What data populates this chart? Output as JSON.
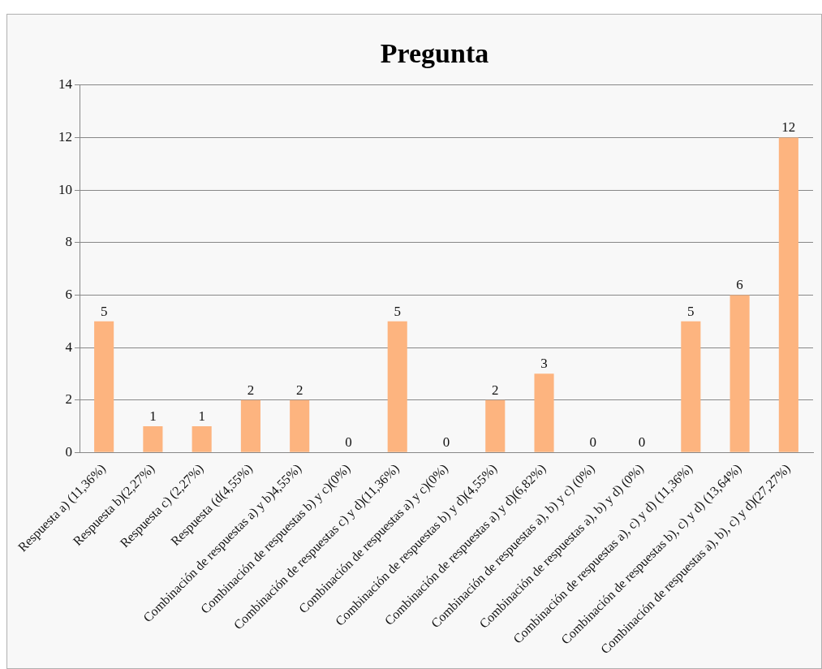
{
  "chart_data": {
    "type": "bar",
    "title": "Pregunta",
    "categories": [
      "Respuesta a) (11,36%)",
      "Respuesta b)(2,27%)",
      "Respuesta c) (2,27%)",
      "Respuesta (d(4,55%)",
      "Combinación de respuestas a) y b)4,55%)",
      "Combinación de respuestas b) y c)(0%)",
      "Combinación de respuestas c) y d)(11,36%)",
      "Combinación de respuestas a) y c)(0%)",
      "Combinación de respuestas b) y d)(4,55%)",
      "Combinación de respuestas a) y d)(6,82%)",
      "Combinación de respuestas a), b) y c) (0%)",
      "Combinación de respuestas a), b) y d) (0%)",
      "Combinación de respuestas a), c) y d) (11,36%)",
      "Combinación de respuestas b), c) y d) (13,64%)",
      "Combinación de respuestas a), b), c) y d)(27,27%)"
    ],
    "values": [
      5,
      1,
      1,
      2,
      2,
      0,
      5,
      0,
      2,
      3,
      0,
      0,
      5,
      6,
      12
    ],
    "color": "#fdb47f",
    "ylim": [
      0,
      14
    ],
    "yticks": [
      0,
      2,
      4,
      6,
      8,
      10,
      12,
      14
    ],
    "grid": "y",
    "data_labels": true,
    "legend": false
  }
}
